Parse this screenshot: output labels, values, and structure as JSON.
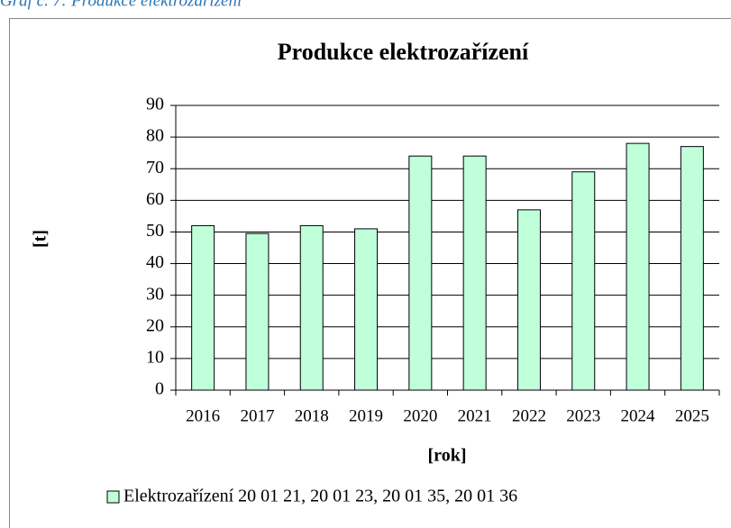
{
  "caption": "Graf č. 7: Produkce elektrozařízení",
  "chart_data": {
    "type": "bar",
    "title": "Produkce elektrozařízení",
    "x_label": "[rok]",
    "y_label": "[t]",
    "categories": [
      "2016",
      "2017",
      "2018",
      "2019",
      "2020",
      "2021",
      "2022",
      "2023",
      "2024",
      "2025"
    ],
    "series": [
      {
        "name": "Elektrozařízení 20 01 21, 20 01 23, 20 01 35, 20 01 36",
        "color": "#bfffd9",
        "values": [
          52,
          49.5,
          52,
          51,
          74,
          74,
          57,
          69,
          78,
          77
        ]
      }
    ],
    "ylim": [
      0,
      90
    ],
    "yticks": [
      0,
      10,
      20,
      30,
      40,
      50,
      60,
      70,
      80,
      90
    ],
    "grid": true,
    "legend": "bottom"
  }
}
